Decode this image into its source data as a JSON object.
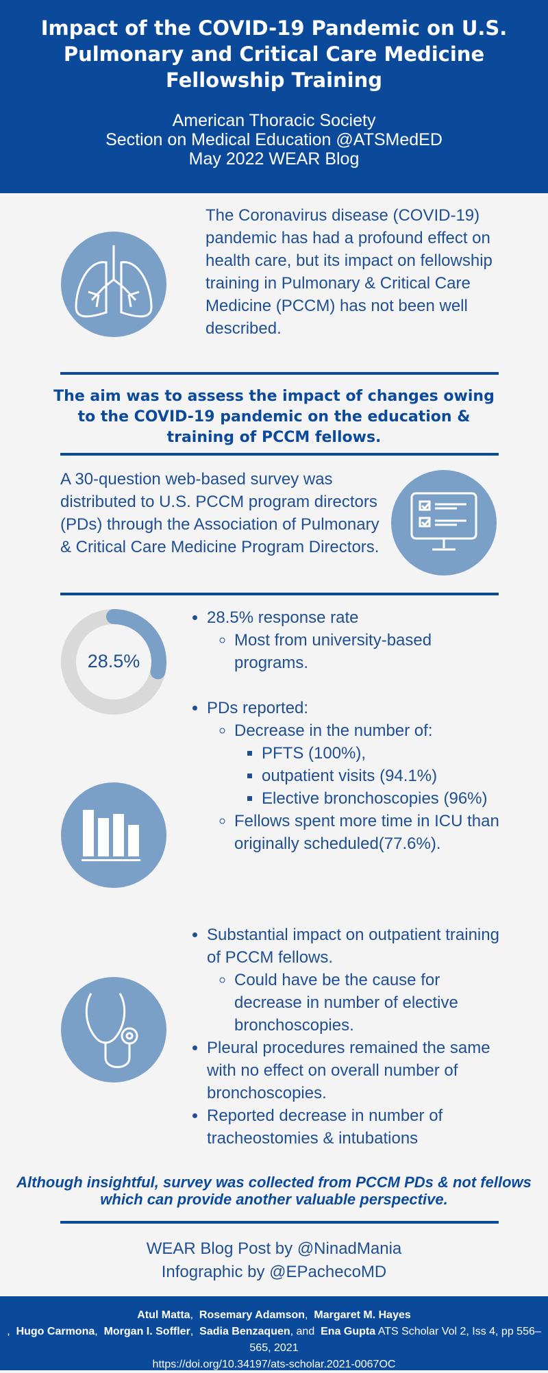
{
  "header": {
    "title": "Impact of the COVID-19 Pandemic on U.S. Pulmonary and Critical Care Medicine Fellowship Training",
    "subtitle_lines": [
      "American Thoracic Society",
      "Section on Medical Education @ATSMedED",
      "May 2022 WEAR Blog"
    ]
  },
  "intro": "The Coronavirus disease (COVID-19) pandemic has had a profound effect on health care, but its impact on fellowship training in Pulmonary & Critical Care Medicine (PCCM) has not been well described.",
  "aim": "The aim was to assess the impact of changes owing to the COVID-19 pandemic on the education & training of PCCM fellows.",
  "survey": "A 30-question web-based survey was distributed to U.S. PCCM program directors (PDs) through the Association of Pulmonary & Critical Care Medicine Program Directors.",
  "response_rate": {
    "value": 28.5,
    "label": "28.5%"
  },
  "findings_1": [
    {
      "text": "28.5% response rate",
      "sub": [
        "Most from university-based programs."
      ]
    }
  ],
  "findings_2": [
    {
      "text": "PDs reported:",
      "sub": [
        {
          "text": "Decrease in the number of:",
          "sub": [
            "PFTS (100%),",
            "outpatient visits (94.1%)",
            "Elective bronchoscopies (96%)"
          ]
        },
        {
          "text": "Fellows spent more time in ICU than originally scheduled(77.6%)."
        }
      ]
    }
  ],
  "findings_3": [
    {
      "text": "Substantial impact on outpatient training of PCCM fellows.",
      "sub": [
        "Could have be the cause for decrease in number of elective bronchoscopies."
      ]
    },
    {
      "text": "Pleural procedures remained the same with no effect on overall number of bronchoscopies."
    },
    {
      "text": "Reported decrease in number of tracheostomies & intubations"
    }
  ],
  "conclusion": "Although insightful, survey was collected from PCCM PDs & not fellows which can provide another valuable perspective.",
  "credits": [
    "WEAR Blog Post by @NinadMania",
    "Infographic by @EPachecoMD"
  ],
  "footer": {
    "authors": [
      {
        "text": "Atul Matta",
        "bold": true
      },
      {
        "text": ",  "
      },
      {
        "text": "Rosemary Adamson",
        "bold": true
      },
      {
        "text": ",  "
      },
      {
        "text": "Margaret M. Hayes",
        "bold": true
      },
      {
        "text": ",  "
      },
      {
        "text": "Hugo Carmona",
        "bold": true
      },
      {
        "text": ",  "
      },
      {
        "text": "Morgan I. Soffler",
        "bold": true
      },
      {
        "text": ",  "
      },
      {
        "text": "Sadia Benzaquen",
        "bold": true
      },
      {
        "text": ", and  "
      },
      {
        "text": "Ena Gupta",
        "bold": true
      }
    ],
    "citation": "ATS Scholar Vol 2, Iss 4, pp 556–565, 2021",
    "doi": "https://doi.org/10.34197/ats-scholar.2021-0067OC"
  }
}
